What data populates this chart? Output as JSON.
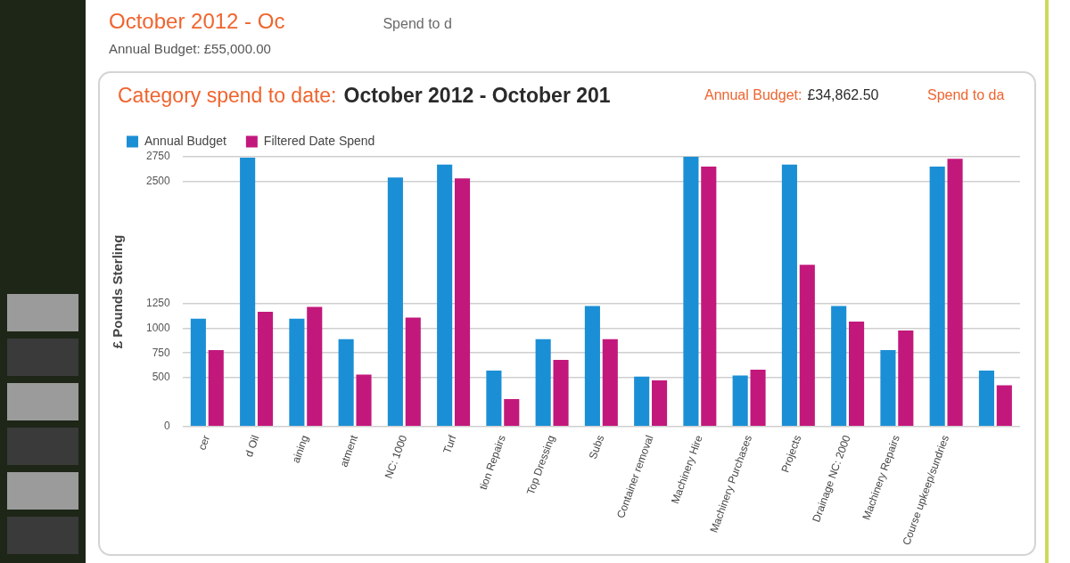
{
  "chart_data": {
    "type": "bar",
    "title": "Category spend to date:",
    "subtitle": "October 2012 - October 201",
    "ylabel": "£ Pounds Sterling",
    "annotations": [
      "October 2012 - Oc",
      "Spend to d",
      "Annual Budget: £55,000.00",
      "Annual Budget:",
      "£34,862.50",
      "Spend to da"
    ],
    "categories": [
      "cer",
      "d Oil",
      "aining",
      "atment",
      "NC: 1000",
      "Turf",
      "tion Repairs",
      "Top Dressing",
      "Subs",
      "Container removal",
      "Machinery Hire",
      "Machinery Purchases",
      "Projects",
      "Drainage NC: 2000",
      "Machinery Repairs",
      "Course upkeep/sundries",
      null
    ],
    "series": [
      {
        "name": "Annual Budget",
        "color": "#1b8fd5",
        "values": [
          1100,
          2740,
          1100,
          890,
          2540,
          2670,
          570,
          890,
          1230,
          510,
          2750,
          520,
          2670,
          1230,
          780,
          2650,
          570
        ]
      },
      {
        "name": "Filtered Date Spend",
        "color": "#c2187c",
        "values": [
          780,
          1170,
          1220,
          530,
          1110,
          2530,
          280,
          680,
          890,
          470,
          2650,
          580,
          1650,
          1070,
          980,
          2730,
          420
        ]
      }
    ],
    "ylim": [
      0,
      2750
    ],
    "yticks": [
      0,
      500,
      750,
      1000,
      1250,
      2500,
      2750
    ],
    "grid": "y",
    "legend": "top left"
  }
}
